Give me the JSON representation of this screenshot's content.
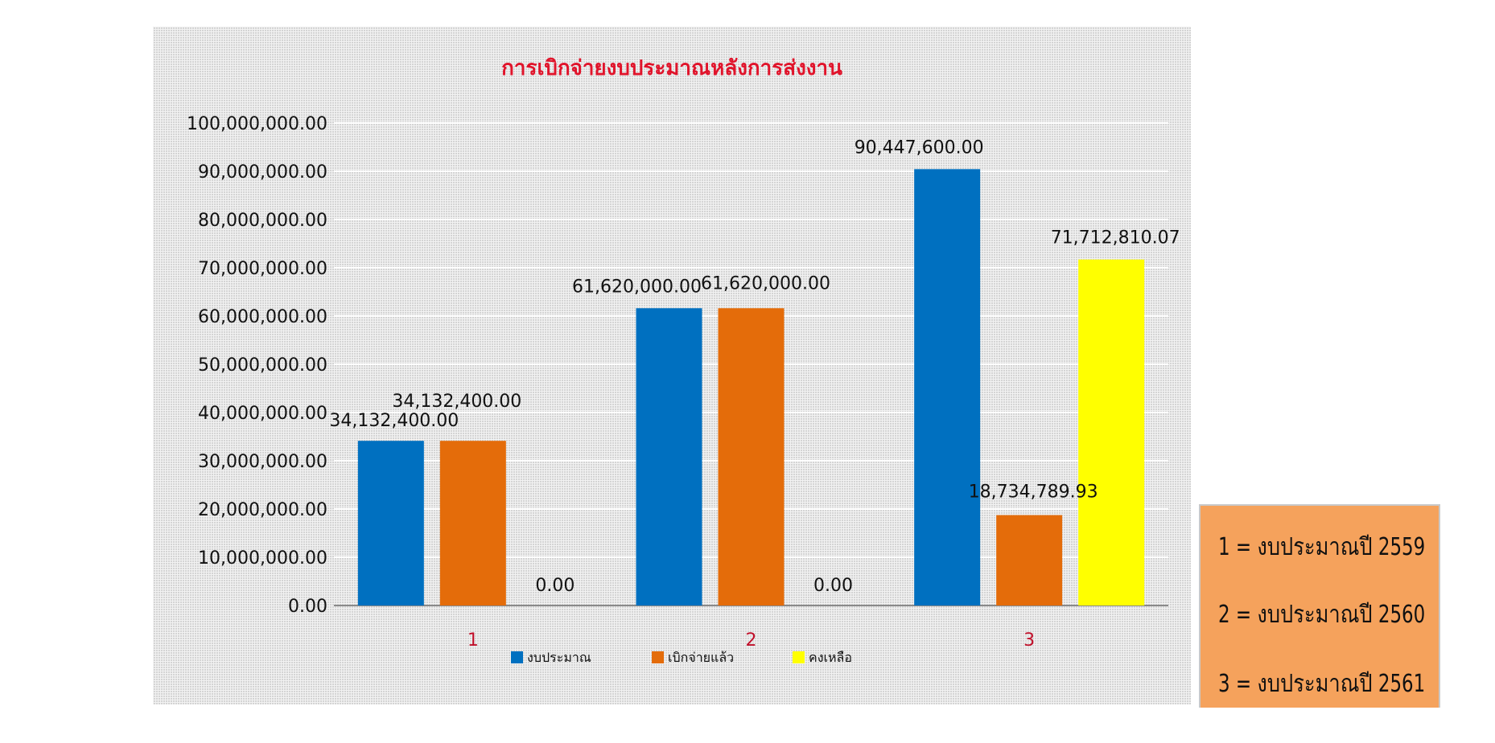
{
  "colors": {
    "title": "#e0142b",
    "xtick": "#c0102a",
    "gridline": "#ffffff",
    "axis": "#8a8a8a"
  },
  "chart_data": {
    "type": "bar",
    "title": "การเบิกจ่ายงบประมาณหลังการส่งงาน",
    "xlabel": "",
    "ylabel": "",
    "ylim": [
      0,
      100000000
    ],
    "grid": true,
    "legend_position": "bottom",
    "categories": [
      "1",
      "2",
      "3"
    ],
    "yticks": [
      "0.00",
      "10,000,000.00",
      "20,000,000.00",
      "30,000,000.00",
      "40,000,000.00",
      "50,000,000.00",
      "60,000,000.00",
      "70,000,000.00",
      "80,000,000.00",
      "90,000,000.00",
      "100,000,000.00"
    ],
    "series": [
      {
        "name": "งบประมาณ",
        "color": "#0070c0",
        "values": [
          34132400,
          61620000,
          90447600
        ],
        "labels": [
          "34,132,400.00",
          "61,620,000.00",
          "90,447,600.00"
        ]
      },
      {
        "name": "เบิกจ่ายแล้ว",
        "color": "#e46c0a",
        "values": [
          34132400,
          61620000,
          18734789.93
        ],
        "labels": [
          "34,132,400.00",
          "61,620,000.00",
          "18,734,789.93"
        ]
      },
      {
        "name": "คงเหลือ",
        "color": "#ffff00",
        "values": [
          0,
          0,
          71712810.07
        ],
        "labels": [
          "0.00",
          "0.00",
          "71,712,810.07"
        ]
      }
    ]
  },
  "note": {
    "lines": [
      "1 = งบประมาณปี 2559",
      "2 = งบประมาณปี 2560",
      "3 = งบประมาณปี 2561"
    ]
  }
}
